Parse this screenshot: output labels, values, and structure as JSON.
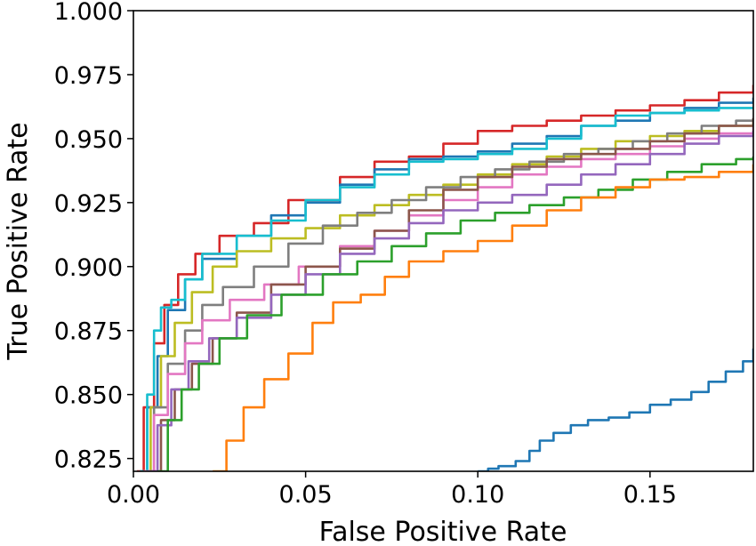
{
  "chart_data": {
    "type": "line",
    "title": "",
    "xlabel": "False Positive Rate",
    "ylabel": "True Positive Rate",
    "xlim": [
      0.0,
      0.18
    ],
    "ylim": [
      0.82,
      1.0
    ],
    "x_ticks": [
      0.0,
      0.05,
      0.1,
      0.15
    ],
    "x_tick_labels": [
      "0.00",
      "0.05",
      "0.10",
      "0.15"
    ],
    "y_ticks": [
      0.825,
      0.85,
      0.875,
      0.9,
      0.925,
      0.95,
      0.975,
      1.0
    ],
    "y_tick_labels": [
      "0.825",
      "0.850",
      "0.875",
      "0.900",
      "0.925",
      "0.950",
      "0.975",
      "1.000"
    ],
    "grid": false,
    "legend": "none",
    "series": [
      {
        "color": "#d62728",
        "points": [
          [
            0.001,
            0.82
          ],
          [
            0.003,
            0.845
          ],
          [
            0.006,
            0.87
          ],
          [
            0.009,
            0.885
          ],
          [
            0.013,
            0.897
          ],
          [
            0.018,
            0.905
          ],
          [
            0.025,
            0.912
          ],
          [
            0.035,
            0.917
          ],
          [
            0.045,
            0.926
          ],
          [
            0.06,
            0.935
          ],
          [
            0.07,
            0.941
          ],
          [
            0.08,
            0.943
          ],
          [
            0.09,
            0.948
          ],
          [
            0.1,
            0.953
          ],
          [
            0.11,
            0.955
          ],
          [
            0.12,
            0.957
          ],
          [
            0.13,
            0.959
          ],
          [
            0.14,
            0.961
          ],
          [
            0.15,
            0.963
          ],
          [
            0.16,
            0.965
          ],
          [
            0.17,
            0.968
          ],
          [
            0.18,
            0.971
          ]
        ]
      },
      {
        "color": "#1f77b4",
        "points": [
          [
            0.002,
            0.82
          ],
          [
            0.004,
            0.845
          ],
          [
            0.007,
            0.865
          ],
          [
            0.01,
            0.883
          ],
          [
            0.015,
            0.895
          ],
          [
            0.02,
            0.903
          ],
          [
            0.03,
            0.912
          ],
          [
            0.04,
            0.92
          ],
          [
            0.05,
            0.925
          ],
          [
            0.06,
            0.932
          ],
          [
            0.07,
            0.938
          ],
          [
            0.08,
            0.942
          ],
          [
            0.09,
            0.943
          ],
          [
            0.1,
            0.945
          ],
          [
            0.11,
            0.948
          ],
          [
            0.12,
            0.951
          ],
          [
            0.13,
            0.955
          ],
          [
            0.14,
            0.957
          ],
          [
            0.15,
            0.96
          ],
          [
            0.16,
            0.962
          ],
          [
            0.17,
            0.964
          ],
          [
            0.18,
            0.966
          ]
        ]
      },
      {
        "color": "#17becf",
        "points": [
          [
            0.002,
            0.82
          ],
          [
            0.004,
            0.85
          ],
          [
            0.006,
            0.875
          ],
          [
            0.008,
            0.884
          ],
          [
            0.011,
            0.887
          ],
          [
            0.015,
            0.895
          ],
          [
            0.02,
            0.905
          ],
          [
            0.03,
            0.912
          ],
          [
            0.04,
            0.918
          ],
          [
            0.05,
            0.926
          ],
          [
            0.06,
            0.931
          ],
          [
            0.07,
            0.936
          ],
          [
            0.08,
            0.941
          ],
          [
            0.09,
            0.942
          ],
          [
            0.1,
            0.944
          ],
          [
            0.11,
            0.946
          ],
          [
            0.12,
            0.95
          ],
          [
            0.13,
            0.955
          ],
          [
            0.14,
            0.959
          ],
          [
            0.15,
            0.96
          ],
          [
            0.16,
            0.961
          ],
          [
            0.17,
            0.962
          ],
          [
            0.18,
            0.962
          ]
        ]
      },
      {
        "color": "#bcbd22",
        "points": [
          [
            0.003,
            0.82
          ],
          [
            0.005,
            0.845
          ],
          [
            0.008,
            0.865
          ],
          [
            0.012,
            0.878
          ],
          [
            0.017,
            0.89
          ],
          [
            0.023,
            0.9
          ],
          [
            0.03,
            0.906
          ],
          [
            0.04,
            0.911
          ],
          [
            0.05,
            0.915
          ],
          [
            0.06,
            0.92
          ],
          [
            0.07,
            0.924
          ],
          [
            0.08,
            0.928
          ],
          [
            0.09,
            0.932
          ],
          [
            0.1,
            0.936
          ],
          [
            0.11,
            0.94
          ],
          [
            0.12,
            0.943
          ],
          [
            0.13,
            0.946
          ],
          [
            0.14,
            0.949
          ],
          [
            0.15,
            0.951
          ],
          [
            0.16,
            0.953
          ],
          [
            0.17,
            0.955
          ],
          [
            0.18,
            0.957
          ]
        ]
      },
      {
        "color": "#7f7f7f",
        "points": [
          [
            0.003,
            0.82
          ],
          [
            0.006,
            0.845
          ],
          [
            0.01,
            0.862
          ],
          [
            0.015,
            0.875
          ],
          [
            0.02,
            0.885
          ],
          [
            0.026,
            0.892
          ],
          [
            0.035,
            0.9
          ],
          [
            0.045,
            0.909
          ],
          [
            0.055,
            0.916
          ],
          [
            0.065,
            0.921
          ],
          [
            0.075,
            0.926
          ],
          [
            0.085,
            0.931
          ],
          [
            0.095,
            0.935
          ],
          [
            0.105,
            0.938
          ],
          [
            0.115,
            0.941
          ],
          [
            0.125,
            0.944
          ],
          [
            0.135,
            0.946
          ],
          [
            0.145,
            0.949
          ],
          [
            0.155,
            0.952
          ],
          [
            0.165,
            0.955
          ],
          [
            0.175,
            0.957
          ],
          [
            0.18,
            0.958
          ]
        ]
      },
      {
        "color": "#e377c2",
        "points": [
          [
            0.003,
            0.82
          ],
          [
            0.006,
            0.842
          ],
          [
            0.01,
            0.858
          ],
          [
            0.015,
            0.87
          ],
          [
            0.02,
            0.879
          ],
          [
            0.028,
            0.887
          ],
          [
            0.038,
            0.893
          ],
          [
            0.048,
            0.9
          ],
          [
            0.06,
            0.908
          ],
          [
            0.07,
            0.914
          ],
          [
            0.08,
            0.92
          ],
          [
            0.09,
            0.926
          ],
          [
            0.1,
            0.931
          ],
          [
            0.11,
            0.936
          ],
          [
            0.12,
            0.939
          ],
          [
            0.13,
            0.942
          ],
          [
            0.14,
            0.944
          ],
          [
            0.15,
            0.947
          ],
          [
            0.16,
            0.95
          ],
          [
            0.17,
            0.952
          ],
          [
            0.18,
            0.955
          ]
        ]
      },
      {
        "color": "#8c564b",
        "points": [
          [
            0.005,
            0.82
          ],
          [
            0.008,
            0.84
          ],
          [
            0.012,
            0.852
          ],
          [
            0.017,
            0.862
          ],
          [
            0.023,
            0.872
          ],
          [
            0.03,
            0.882
          ],
          [
            0.04,
            0.893
          ],
          [
            0.05,
            0.9
          ],
          [
            0.06,
            0.907
          ],
          [
            0.07,
            0.914
          ],
          [
            0.08,
            0.922
          ],
          [
            0.09,
            0.93
          ],
          [
            0.1,
            0.935
          ],
          [
            0.11,
            0.939
          ],
          [
            0.12,
            0.942
          ],
          [
            0.13,
            0.944
          ],
          [
            0.14,
            0.946
          ],
          [
            0.15,
            0.949
          ],
          [
            0.16,
            0.952
          ],
          [
            0.17,
            0.955
          ],
          [
            0.18,
            0.958
          ]
        ]
      },
      {
        "color": "#9467bd",
        "points": [
          [
            0.004,
            0.82
          ],
          [
            0.007,
            0.838
          ],
          [
            0.011,
            0.852
          ],
          [
            0.016,
            0.863
          ],
          [
            0.022,
            0.872
          ],
          [
            0.03,
            0.88
          ],
          [
            0.04,
            0.889
          ],
          [
            0.05,
            0.897
          ],
          [
            0.06,
            0.905
          ],
          [
            0.07,
            0.911
          ],
          [
            0.08,
            0.917
          ],
          [
            0.09,
            0.922
          ],
          [
            0.1,
            0.925
          ],
          [
            0.11,
            0.928
          ],
          [
            0.12,
            0.932
          ],
          [
            0.13,
            0.936
          ],
          [
            0.14,
            0.94
          ],
          [
            0.15,
            0.944
          ],
          [
            0.16,
            0.948
          ],
          [
            0.17,
            0.951
          ],
          [
            0.18,
            0.953
          ]
        ]
      },
      {
        "color": "#2ca02c",
        "points": [
          [
            0.007,
            0.82
          ],
          [
            0.01,
            0.84
          ],
          [
            0.014,
            0.852
          ],
          [
            0.019,
            0.862
          ],
          [
            0.025,
            0.872
          ],
          [
            0.033,
            0.881
          ],
          [
            0.043,
            0.889
          ],
          [
            0.055,
            0.897
          ],
          [
            0.065,
            0.902
          ],
          [
            0.075,
            0.908
          ],
          [
            0.085,
            0.913
          ],
          [
            0.095,
            0.918
          ],
          [
            0.105,
            0.921
          ],
          [
            0.115,
            0.924
          ],
          [
            0.125,
            0.927
          ],
          [
            0.135,
            0.93
          ],
          [
            0.145,
            0.934
          ],
          [
            0.155,
            0.937
          ],
          [
            0.165,
            0.94
          ],
          [
            0.175,
            0.942
          ],
          [
            0.18,
            0.943
          ]
        ]
      },
      {
        "color": "#ff7f0e",
        "points": [
          [
            0.023,
            0.82
          ],
          [
            0.027,
            0.832
          ],
          [
            0.032,
            0.845
          ],
          [
            0.038,
            0.856
          ],
          [
            0.045,
            0.866
          ],
          [
            0.052,
            0.878
          ],
          [
            0.058,
            0.886
          ],
          [
            0.066,
            0.889
          ],
          [
            0.073,
            0.896
          ],
          [
            0.08,
            0.902
          ],
          [
            0.09,
            0.906
          ],
          [
            0.1,
            0.91
          ],
          [
            0.11,
            0.916
          ],
          [
            0.12,
            0.922
          ],
          [
            0.13,
            0.927
          ],
          [
            0.14,
            0.931
          ],
          [
            0.15,
            0.934
          ],
          [
            0.16,
            0.935
          ],
          [
            0.17,
            0.937
          ],
          [
            0.18,
            0.94
          ]
        ]
      },
      {
        "color": "#1f77b4",
        "points": [
          [
            0.1,
            0.82
          ],
          [
            0.103,
            0.821
          ],
          [
            0.106,
            0.822
          ],
          [
            0.111,
            0.824
          ],
          [
            0.115,
            0.828
          ],
          [
            0.118,
            0.832
          ],
          [
            0.122,
            0.835
          ],
          [
            0.127,
            0.838
          ],
          [
            0.132,
            0.84
          ],
          [
            0.138,
            0.841
          ],
          [
            0.144,
            0.843
          ],
          [
            0.15,
            0.846
          ],
          [
            0.156,
            0.848
          ],
          [
            0.162,
            0.851
          ],
          [
            0.167,
            0.855
          ],
          [
            0.172,
            0.859
          ],
          [
            0.177,
            0.863
          ],
          [
            0.18,
            0.868
          ]
        ]
      }
    ]
  }
}
